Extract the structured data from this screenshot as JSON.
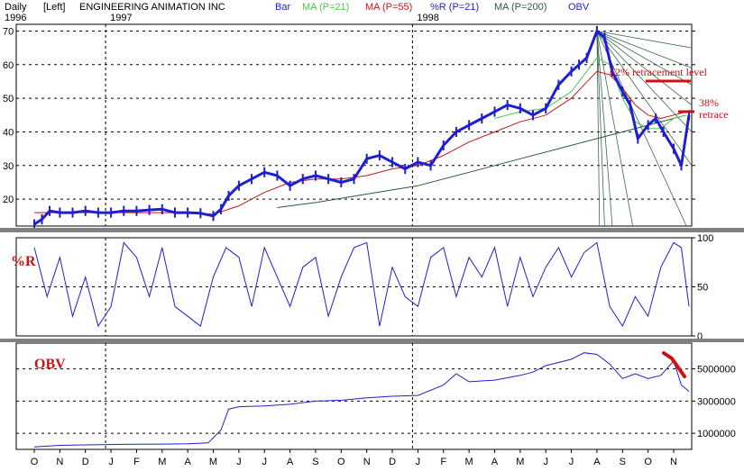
{
  "header": {
    "period": "Daily",
    "scale_side": "[Left]",
    "company": "ENGINEERING ANIMATION INC",
    "legend": [
      {
        "label": "Bar",
        "color": "#1f1fd0"
      },
      {
        "label": "MA (P=21)",
        "color": "#52c452"
      },
      {
        "label": "MA (P=55)",
        "color": "#c01818"
      },
      {
        "label": "%R (P=21)",
        "color": "#1f1fd0"
      },
      {
        "label": "MA (P=200)",
        "color": "#2b5a3a"
      },
      {
        "label": "OBV",
        "color": "#1f1fd0"
      }
    ],
    "years": [
      {
        "label": "1996",
        "x": 0
      },
      {
        "label": "1997",
        "x": 3
      },
      {
        "label": "1998",
        "x": 15
      }
    ]
  },
  "annotations": {
    "fib62": "62% retracement level",
    "fib38_line1": "38%",
    "fib38_line2": "retrace",
    "pctR_title": "%R",
    "obv_title": "OBV"
  },
  "colors": {
    "price": "#1f1fd0",
    "ma21": "#52c452",
    "ma55": "#c01818",
    "ma200": "#2b5a3a",
    "annot": "#d01010",
    "grid": "#000000",
    "fan": "#3a6a4a"
  },
  "chart_data": [
    {
      "type": "line",
      "title": "ENGINEERING ANIMATION INC",
      "ylim": [
        12,
        72
      ],
      "yticks": [
        20,
        30,
        40,
        50,
        60,
        70
      ],
      "x_months": [
        "O",
        "N",
        "D",
        "J",
        "F",
        "M",
        "A",
        "M",
        "J",
        "J",
        "A",
        "S",
        "O",
        "N",
        "D",
        "J",
        "F",
        "M",
        "A",
        "M",
        "J",
        "J",
        "A",
        "S",
        "O",
        "N"
      ],
      "series": [
        {
          "name": "Bar",
          "x": [
            0,
            0.3,
            0.6,
            1,
            1.5,
            2,
            2.5,
            3,
            3.5,
            4,
            4.5,
            5,
            5.5,
            6,
            6.5,
            7,
            7.3,
            7.6,
            8,
            8.5,
            9,
            9.5,
            10,
            10.5,
            11,
            11.5,
            12,
            12.5,
            13,
            13.5,
            14,
            14.5,
            15,
            15.5,
            16,
            16.5,
            17,
            17.5,
            18,
            18.5,
            19,
            19.5,
            20,
            20.5,
            21,
            21.3,
            21.6,
            22,
            22.3,
            22.6,
            23,
            23.3,
            23.6,
            24,
            24.3,
            24.6,
            25,
            25.3,
            25.6
          ],
          "values": [
            12.5,
            14,
            16.5,
            16,
            16,
            16.5,
            16,
            16,
            16.5,
            16.5,
            16.8,
            17,
            16,
            16,
            15.8,
            15,
            17,
            21,
            24,
            26,
            28,
            27,
            24,
            26,
            27,
            26,
            25,
            26,
            32,
            33,
            31,
            29,
            31,
            30,
            36,
            40,
            42,
            44,
            46,
            48,
            47,
            45,
            47,
            54,
            58,
            60,
            62,
            70,
            68,
            58,
            52,
            48,
            38,
            42,
            44,
            40,
            35,
            30,
            45
          ]
        },
        {
          "name": "MA (P=21)",
          "x": [
            18,
            19,
            20,
            21,
            22,
            22.5,
            23,
            23.5,
            24,
            24.5,
            25,
            25.5
          ],
          "values": [
            44,
            46,
            47,
            52,
            62,
            60,
            50,
            43,
            41,
            41,
            44,
            45
          ]
        },
        {
          "name": "MA (P=55)",
          "x": [
            0,
            3,
            6,
            7,
            8,
            9,
            10,
            11,
            12,
            13,
            14,
            15,
            16,
            17,
            18,
            19,
            20,
            21,
            21.5,
            22,
            22.5,
            23,
            23.5,
            24,
            24.5,
            25,
            25.5
          ],
          "values": [
            16,
            16,
            16,
            15.5,
            18,
            22,
            25,
            26,
            26,
            27,
            29,
            30,
            33,
            37,
            40,
            43,
            45,
            50,
            54,
            58,
            57,
            53,
            48,
            45,
            44,
            45,
            46
          ]
        },
        {
          "name": "MA (P=200)",
          "x": [
            9.5,
            11,
            13,
            15,
            17,
            19,
            21,
            22,
            23,
            24,
            25,
            25.5
          ],
          "values": [
            17.5,
            19,
            21.5,
            24,
            28,
            32,
            36,
            38,
            40,
            42,
            44,
            45
          ]
        }
      ]
    },
    {
      "type": "line",
      "title": "%R",
      "ylim": [
        0,
        100
      ],
      "yticks": [
        0,
        50,
        100
      ],
      "series": [
        {
          "name": "%R (P=21)",
          "x": [
            0,
            0.5,
            1,
            1.5,
            2,
            2.5,
            3,
            3.5,
            4,
            4.5,
            5,
            5.5,
            6,
            6.5,
            7,
            7.5,
            8,
            8.5,
            9,
            9.5,
            10,
            10.5,
            11,
            11.5,
            12,
            12.5,
            13,
            13.5,
            14,
            14.5,
            15,
            15.5,
            16,
            16.5,
            17,
            17.5,
            18,
            18.5,
            19,
            19.5,
            20,
            20.5,
            21,
            21.5,
            22,
            22.5,
            23,
            23.5,
            24,
            24.5,
            25,
            25.3,
            25.6
          ],
          "values": [
            90,
            40,
            80,
            20,
            60,
            10,
            30,
            95,
            80,
            40,
            90,
            30,
            20,
            10,
            60,
            90,
            80,
            30,
            90,
            60,
            30,
            70,
            80,
            20,
            60,
            90,
            95,
            10,
            70,
            40,
            30,
            80,
            90,
            40,
            80,
            60,
            90,
            30,
            80,
            40,
            70,
            90,
            60,
            85,
            95,
            30,
            10,
            40,
            20,
            70,
            95,
            90,
            30
          ]
        }
      ]
    },
    {
      "type": "line",
      "title": "OBV",
      "ylim": [
        0,
        6600000
      ],
      "yticks": [
        1000000,
        3000000,
        5000000
      ],
      "series": [
        {
          "name": "OBV",
          "x": [
            0,
            1,
            2,
            3,
            4,
            5,
            6,
            6.8,
            7.3,
            7.6,
            8,
            9,
            10,
            11,
            12,
            13,
            14,
            15,
            16,
            16.5,
            17,
            18,
            19,
            19.5,
            20,
            20.5,
            21,
            21.5,
            22,
            22.5,
            23,
            23.5,
            24,
            24.5,
            25,
            25.3,
            25.6
          ],
          "values": [
            150000,
            250000,
            280000,
            300000,
            320000,
            330000,
            350000,
            400000,
            1200000,
            2500000,
            2650000,
            2700000,
            2800000,
            3000000,
            3050000,
            3200000,
            3300000,
            3350000,
            4000000,
            4700000,
            4200000,
            4300000,
            4600000,
            4800000,
            5200000,
            5400000,
            5600000,
            6000000,
            5900000,
            5300000,
            4400000,
            4700000,
            4400000,
            4600000,
            5500000,
            4000000,
            3600000
          ]
        }
      ]
    }
  ]
}
